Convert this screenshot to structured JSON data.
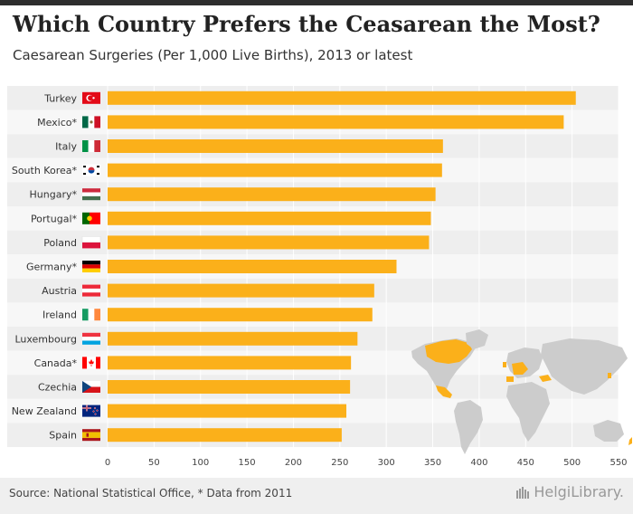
{
  "chart_data": {
    "type": "bar",
    "orientation": "horizontal",
    "title": "Which Country Prefers the Ceasarean the Most?",
    "subtitle": "Caesarean Surgeries (Per 1,000 Live Births), 2013 or latest",
    "categories": [
      "Turkey",
      "Mexico*",
      "Italy",
      "South Korea*",
      "Hungary*",
      "Portugal*",
      "Poland",
      "Germany*",
      "Austria",
      "Ireland",
      "Luxembourg",
      "Canada*",
      "Czechia",
      "New Zealand",
      "Spain"
    ],
    "values": [
      504,
      491,
      361,
      360,
      353,
      348,
      346,
      311,
      287,
      285,
      269,
      262,
      261,
      257,
      252
    ],
    "xlim": [
      0,
      550
    ],
    "xticks": [
      0,
      50,
      100,
      150,
      200,
      250,
      300,
      350,
      400,
      450,
      500,
      550
    ],
    "grid": true,
    "bar_color": "#FBB01A"
  },
  "flags": [
    "turkey-flag-icon",
    "mexico-flag-icon",
    "italy-flag-icon",
    "south-korea-flag-icon",
    "hungary-flag-icon",
    "portugal-flag-icon",
    "poland-flag-icon",
    "germany-flag-icon",
    "austria-flag-icon",
    "ireland-flag-icon",
    "luxembourg-flag-icon",
    "canada-flag-icon",
    "czechia-flag-icon",
    "new-zealand-flag-icon",
    "spain-flag-icon"
  ],
  "footer": {
    "source": "Source: National Statistical Office, * Data from 2011",
    "brand": "HelgiLibrary."
  },
  "colors": {
    "bar": "#FBB01A",
    "map_base": "#cccccc",
    "map_highlight": "#FBB01A",
    "footer_bg": "#efefef"
  }
}
